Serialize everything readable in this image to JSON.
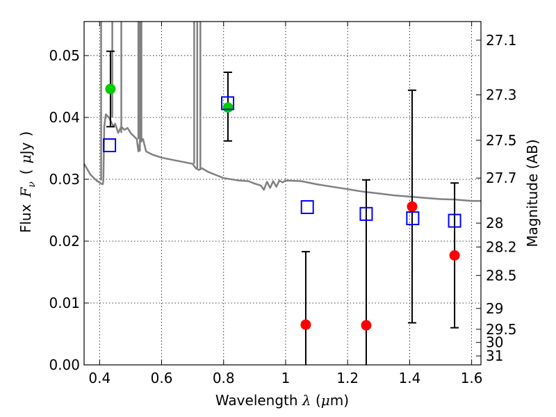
{
  "chart_data": {
    "type": "scatter",
    "xlabel": "Wavelength λ (μm)",
    "xlabel_parts": {
      "prefix": "Wavelength ",
      "lambda": "λ",
      "unit_open": " (",
      "mu": "μ",
      "unit_close": "m)"
    },
    "ylabel": "Flux F_ν ( μJy )",
    "ylabel_parts": {
      "word": "Flux",
      "F": "F",
      "nu": "ν",
      "open": "(",
      "mu": "μ",
      "unit": "Jy",
      "close": ")"
    },
    "ylabel_right": "Magnitude (AB)",
    "xlim": [
      0.35,
      1.63
    ],
    "ylim": [
      0.0,
      0.0555
    ],
    "grid": true,
    "x_ticks": [
      {
        "value": 0.4,
        "label": "0.4"
      },
      {
        "value": 0.6,
        "label": "0.6"
      },
      {
        "value": 0.8,
        "label": "0.8"
      },
      {
        "value": 1.0,
        "label": "1"
      },
      {
        "value": 1.2,
        "label": "1.2"
      },
      {
        "value": 1.4,
        "label": "1.4"
      },
      {
        "value": 1.6,
        "label": "1.6"
      }
    ],
    "y_ticks": [
      {
        "value": 0.0,
        "label": "0.00"
      },
      {
        "value": 0.01,
        "label": "0.01"
      },
      {
        "value": 0.02,
        "label": "0.02"
      },
      {
        "value": 0.03,
        "label": "0.03"
      },
      {
        "value": 0.04,
        "label": "0.04"
      },
      {
        "value": 0.05,
        "label": "0.05"
      }
    ],
    "right_ticks": [
      {
        "mag": 27.1,
        "label": "27.1"
      },
      {
        "mag": 27.3,
        "label": "27.3"
      },
      {
        "mag": 27.5,
        "label": "27.5"
      },
      {
        "mag": 27.7,
        "label": "27.7"
      },
      {
        "mag": 28.0,
        "label": "28"
      },
      {
        "mag": 28.2,
        "label": "28.2"
      },
      {
        "mag": 28.5,
        "label": "28.5"
      },
      {
        "mag": 29.0,
        "label": "29"
      },
      {
        "mag": 29.5,
        "label": "29.5"
      },
      {
        "mag": 30.0,
        "label": "30"
      },
      {
        "mag": 31.0,
        "label": "31"
      }
    ],
    "model_spectrum": {
      "color": "#808080",
      "points": [
        [
          0.35,
          0.0325
        ],
        [
          0.37,
          0.0308
        ],
        [
          0.39,
          0.0298
        ],
        [
          0.405,
          0.0293
        ],
        [
          0.41,
          0.0292
        ],
        [
          0.412,
          0.0297
        ],
        [
          0.415,
          0.0385
        ],
        [
          0.42,
          0.0405
        ],
        [
          0.43,
          0.04
        ],
        [
          0.445,
          0.0385
        ],
        [
          0.45,
          0.039
        ],
        [
          0.46,
          0.0375
        ],
        [
          0.47,
          0.0385
        ],
        [
          0.48,
          0.038
        ],
        [
          0.49,
          0.0383
        ],
        [
          0.5,
          0.0375
        ],
        [
          0.51,
          0.037
        ],
        [
          0.52,
          0.0365
        ],
        [
          0.525,
          0.0345
        ],
        [
          0.53,
          0.036
        ],
        [
          0.54,
          0.0365
        ],
        [
          0.545,
          0.0355
        ],
        [
          0.55,
          0.0345
        ],
        [
          0.57,
          0.034
        ],
        [
          0.6,
          0.0335
        ],
        [
          0.65,
          0.033
        ],
        [
          0.7,
          0.0325
        ],
        [
          0.71,
          0.0318
        ],
        [
          0.72,
          0.0315
        ],
        [
          0.73,
          0.0318
        ],
        [
          0.75,
          0.0312
        ],
        [
          0.8,
          0.0302
        ],
        [
          0.85,
          0.0298
        ],
        [
          0.88,
          0.0297
        ],
        [
          0.9,
          0.0293
        ],
        [
          0.92,
          0.029
        ],
        [
          0.93,
          0.0283
        ],
        [
          0.94,
          0.0296
        ],
        [
          0.95,
          0.0286
        ],
        [
          0.96,
          0.0297
        ],
        [
          0.97,
          0.0288
        ],
        [
          0.98,
          0.0298
        ],
        [
          0.99,
          0.0295
        ],
        [
          1.0,
          0.0298
        ],
        [
          1.05,
          0.0297
        ],
        [
          1.1,
          0.0292
        ],
        [
          1.15,
          0.0288
        ],
        [
          1.2,
          0.0284
        ],
        [
          1.25,
          0.028
        ],
        [
          1.3,
          0.0277
        ],
        [
          1.35,
          0.0274
        ],
        [
          1.4,
          0.0272
        ],
        [
          1.45,
          0.027
        ],
        [
          1.5,
          0.0268
        ],
        [
          1.55,
          0.0267
        ],
        [
          1.6,
          0.0265
        ],
        [
          1.63,
          0.0265
        ]
      ],
      "emission_lines": [
        [
          0.405,
          0.06
        ],
        [
          0.441,
          0.06
        ],
        [
          0.47,
          0.06
        ],
        [
          0.525,
          0.06
        ],
        [
          0.53,
          0.06
        ],
        [
          0.535,
          0.06
        ],
        [
          0.705,
          0.06
        ],
        [
          0.715,
          0.06
        ],
        [
          0.725,
          0.06
        ]
      ]
    },
    "series": [
      {
        "color": "#00cc00",
        "marker": "filled-circle",
        "points": [
          {
            "x": 0.435,
            "y": 0.0446,
            "err": [
              0.0385,
              0.0507
            ]
          },
          {
            "x": 0.814,
            "y": 0.0416,
            "err": [
              0.0362,
              0.0473
            ]
          }
        ]
      },
      {
        "color": "#ff0000",
        "marker": "filled-circle",
        "points": [
          {
            "x": 1.065,
            "y": 0.0065,
            "err": [
              0.0,
              0.0183
            ]
          },
          {
            "x": 1.26,
            "y": 0.0064,
            "err": [
              0.0,
              0.0299
            ]
          },
          {
            "x": 1.408,
            "y": 0.0256,
            "err": [
              0.0068,
              0.0444
            ]
          },
          {
            "x": 1.545,
            "y": 0.0177,
            "err": [
              0.006,
              0.0294
            ]
          }
        ]
      },
      {
        "color": "#0000ff",
        "marker": "open-square",
        "points": [
          {
            "x": 0.432,
            "y": 0.0355
          },
          {
            "x": 0.813,
            "y": 0.0423
          },
          {
            "x": 1.07,
            "y": 0.0255
          },
          {
            "x": 1.26,
            "y": 0.0244
          },
          {
            "x": 1.41,
            "y": 0.0237
          },
          {
            "x": 1.545,
            "y": 0.0233
          }
        ]
      }
    ]
  }
}
